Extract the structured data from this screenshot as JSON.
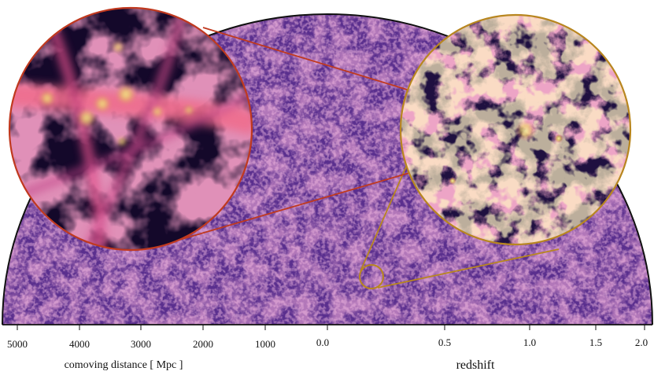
{
  "figure": {
    "left_axis": {
      "title": "comoving distance [ Mpc ]",
      "ticks": [
        "5000",
        "4000",
        "3000",
        "2000",
        "1000"
      ]
    },
    "right_axis": {
      "title": "redshift",
      "ticks": [
        "0.0",
        "0.5",
        "1.0",
        "1.5",
        "2.0"
      ]
    },
    "colors": {
      "background_map": "#5a2f8e",
      "filament": "#f07ab0",
      "hot_spot": "#f6ef8a",
      "zoom1_outline": "#b8861f",
      "zoom2_outline": "#c0391f",
      "axis_line": "#111111"
    }
  }
}
